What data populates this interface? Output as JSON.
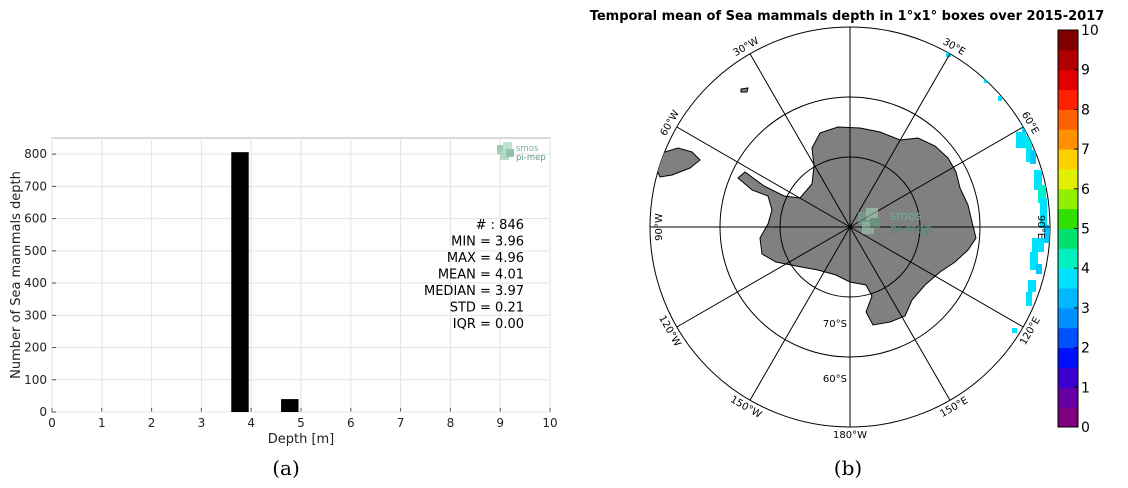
{
  "chart_data": [
    {
      "type": "bar",
      "panel_label": "(a)",
      "xlabel": "Depth [m]",
      "ylabel": "Number of Sea mammals depth",
      "xlim": [
        0,
        10
      ],
      "ylim": [
        0,
        850
      ],
      "x_ticks": [
        "0",
        "1",
        "2",
        "3",
        "4",
        "5",
        "6",
        "7",
        "8",
        "9",
        "10"
      ],
      "y_ticks": [
        "0",
        "100",
        "200",
        "300",
        "400",
        "500",
        "600",
        "700",
        "800"
      ],
      "grid": true,
      "bins": [
        {
          "from": 3.6,
          "to": 3.95,
          "value": 806
        },
        {
          "from": 4.6,
          "to": 4.95,
          "value": 40
        }
      ],
      "stats": [
        "# : 846",
        "MIN = 3.96",
        "MAX =  4.96",
        "MEAN = 4.01",
        "MEDIAN = 3.97",
        "STD = 0.21",
        "IQR = 0.00"
      ],
      "logo": {
        "line1": "smos",
        "line2": "pi-mep"
      }
    },
    {
      "type": "heatmap",
      "projection": "south-polar-stereographic",
      "panel_label": "(b)",
      "title": "Temporal mean of Sea mammals depth in 1°x1° boxes over 2015-2017",
      "lon_labels": [
        "30°W",
        "30°E",
        "60°W",
        "60°E",
        "90°W",
        "90°E",
        "120°W",
        "120°E",
        "150°W",
        "150°E",
        "180°W"
      ],
      "lat_labels": [
        "70°S",
        "60°S"
      ],
      "colorbar": {
        "min": 0,
        "max": 10,
        "ticks": [
          "0",
          "1",
          "2",
          "3",
          "4",
          "5",
          "6",
          "7",
          "8",
          "9",
          "10"
        ],
        "colors": [
          "#7f007f",
          "#6600a6",
          "#3a00d0",
          "#0010ff",
          "#0050ff",
          "#0090ff",
          "#00b8ff",
          "#00e0ff",
          "#00f0c0",
          "#00e070",
          "#30e000",
          "#90f000",
          "#e0f000",
          "#ffd000",
          "#ff9000",
          "#ff6000",
          "#ff2000",
          "#e00000",
          "#b00000",
          "#800000"
        ]
      },
      "data_cells_value_range": [
        3,
        4
      ],
      "land_color": "#808080",
      "logo": {
        "line1": "smos",
        "line2": "pi-mep"
      }
    }
  ]
}
